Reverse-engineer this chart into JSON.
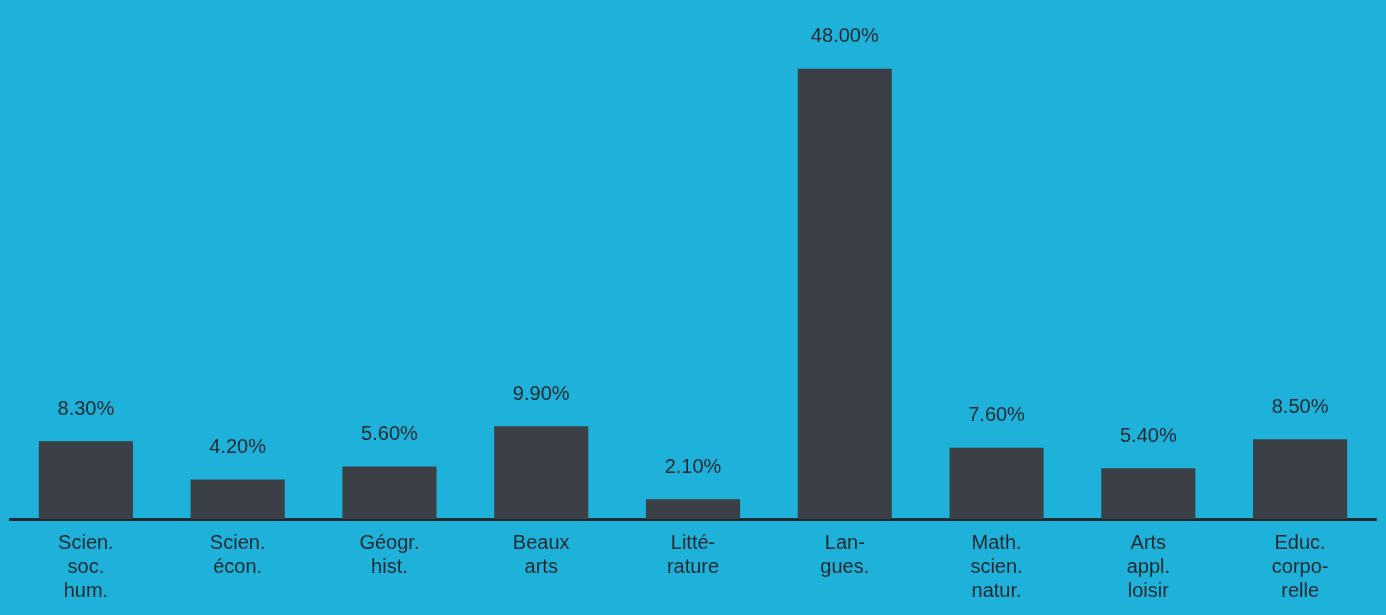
{
  "chart_data": {
    "type": "bar",
    "categories": [
      "Scien.\nsoc.\nhum.",
      "Scien.\nécon.",
      "Géogr.\nhist.",
      "Beaux\narts",
      "Litté-\nrature",
      "Lan-\ngues.",
      "Math.\nscien.\nnatur.",
      "Arts\nappl.\nloisir",
      "Educ.\ncorpo-\nrelle"
    ],
    "values": [
      8.3,
      4.2,
      5.6,
      9.9,
      2.1,
      48.0,
      7.6,
      5.4,
      8.5
    ],
    "value_labels": [
      "8.30%",
      "4.20%",
      "5.60%",
      "9.90%",
      "2.10%",
      "48.00%",
      "7.60%",
      "5.40%",
      "8.50%"
    ],
    "color": "#3b4046",
    "grid": false,
    "legend": false
  }
}
